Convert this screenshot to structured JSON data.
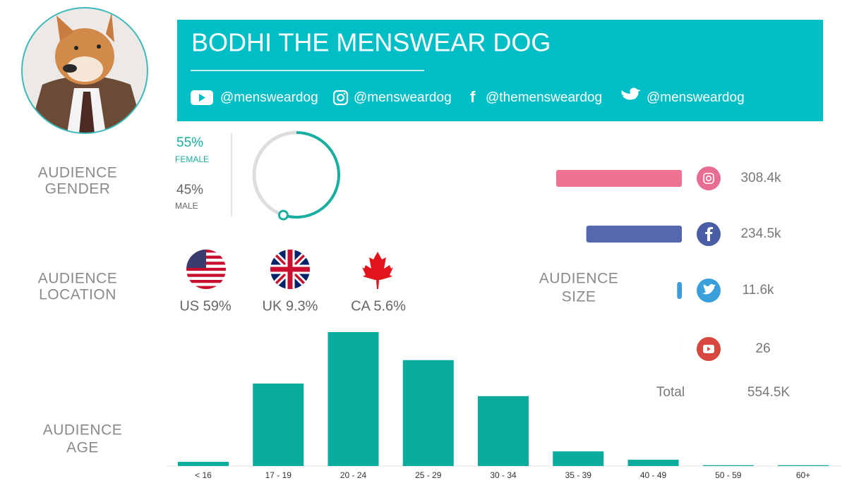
{
  "header": {
    "title": "BODHI THE MENSWEAR DOG",
    "handles": {
      "youtube": "@mensweardog",
      "instagram": "@mensweardog",
      "facebook": "@themensweardog",
      "twitter": "@mensweardog"
    }
  },
  "sections": {
    "gender": [
      "AUDIENCE",
      "GENDER"
    ],
    "location": [
      "AUDIENCE",
      "LOCATION"
    ],
    "age": [
      "AUDIENCE",
      "AGE"
    ],
    "size": [
      "AUDIENCE",
      "SIZE"
    ]
  },
  "locations": [
    "US 59%",
    "UK 9.3%",
    "CA 5.6%"
  ],
  "total": {
    "label": "Total",
    "value": "554.5K"
  },
  "chart_data": [
    {
      "type": "donut",
      "categories": [
        "FEMALE",
        "MALE"
      ],
      "values": [
        55,
        45
      ],
      "value_labels": [
        "55%",
        "45%"
      ],
      "colors": [
        "#1aaea0",
        "#dddddd"
      ]
    },
    {
      "type": "hbar",
      "values": [
        308400,
        234500,
        11600,
        26
      ],
      "value_labels": [
        "308.4k",
        "234.5k",
        "11.6k",
        "26"
      ],
      "colors": [
        "#ee7392",
        "#5568ad",
        "#3d9bd6",
        "#d9534f"
      ],
      "xlim": [
        0,
        308400
      ]
    },
    {
      "type": "bar",
      "categories": [
        "< 16",
        "17 - 19",
        "20 - 24",
        "25 - 29",
        "30 - 34",
        "35 - 39",
        "40 - 49",
        "50 - 59",
        "60+"
      ],
      "values": [
        1.0,
        19.7,
        32.0,
        25.3,
        16.7,
        3.5,
        1.5,
        0.2,
        0.2
      ],
      "color": "#0aab9c",
      "ylim": [
        0,
        32
      ]
    }
  ]
}
